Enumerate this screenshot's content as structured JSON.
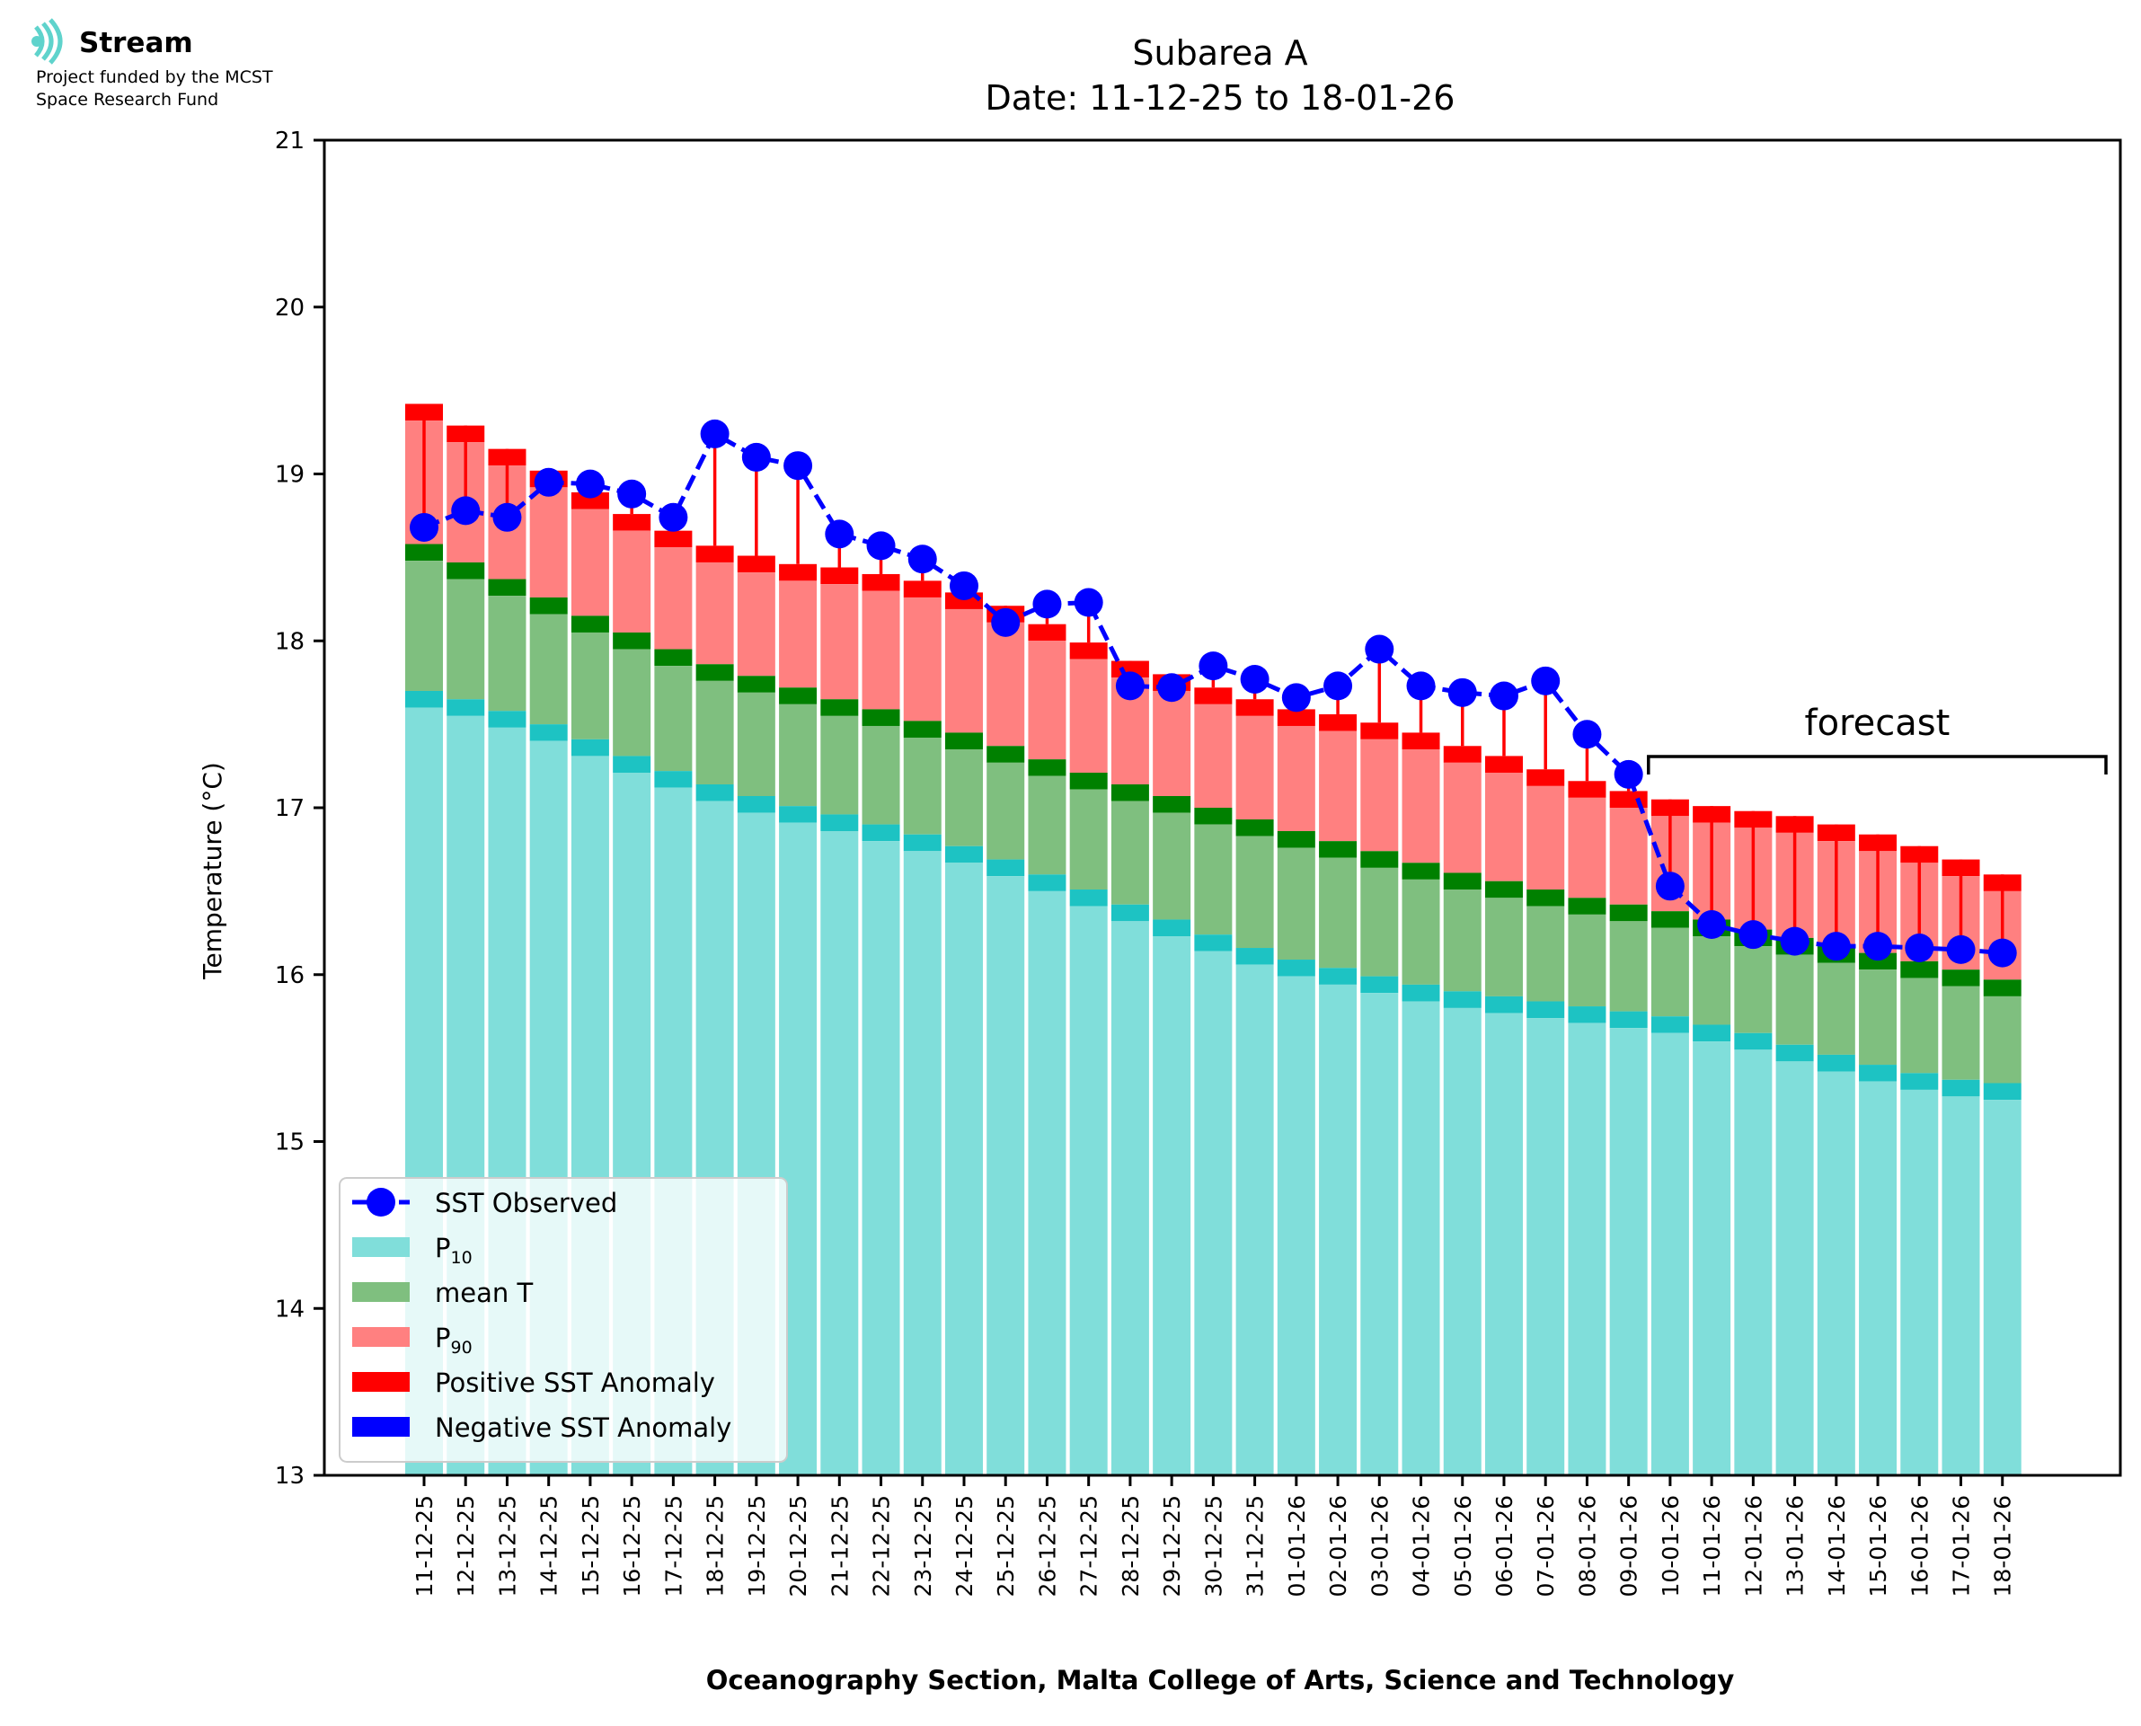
{
  "logo": {
    "name": "Stream",
    "line1": "Project funded by the MCST",
    "line2": "Space Research Fund"
  },
  "footer": "Oceanography Section, Malta College of Arts, Science and Technology",
  "annotation": {
    "forecast": "forecast"
  },
  "colors": {
    "p10": "#80deda",
    "p10_band": "#1dc3c3",
    "mean": "#7fbf7f",
    "mean_band": "#008000",
    "p90": "#ff8080",
    "p90_band": "#ff0000",
    "observed": "#0000ff",
    "neg_anomaly": "#0000ff"
  },
  "chart_data": {
    "type": "bar",
    "title": "Subarea A",
    "subtitle": "Date: 11-12-25 to 18-01-26",
    "xlabel": "Oceanography Section, Malta College of Arts, Science and Technology",
    "ylabel": "Temperature (°C)",
    "ylim": [
      13,
      21
    ],
    "yticks": [
      13,
      14,
      15,
      16,
      17,
      18,
      19,
      20,
      21
    ],
    "grid": false,
    "legend_position": "bottom-left",
    "categories": [
      "11-12-25",
      "12-12-25",
      "13-12-25",
      "14-12-25",
      "15-12-25",
      "16-12-25",
      "17-12-25",
      "18-12-25",
      "19-12-25",
      "20-12-25",
      "21-12-25",
      "22-12-25",
      "23-12-25",
      "24-12-25",
      "25-12-25",
      "26-12-25",
      "27-12-25",
      "28-12-25",
      "29-12-25",
      "30-12-25",
      "31-12-25",
      "01-01-26",
      "02-01-26",
      "03-01-26",
      "04-01-26",
      "05-01-26",
      "06-01-26",
      "07-01-26",
      "08-01-26",
      "09-01-26",
      "10-01-26",
      "11-01-26",
      "12-01-26",
      "13-01-26",
      "14-01-26",
      "15-01-26",
      "16-01-26",
      "17-01-26",
      "18-01-26"
    ],
    "legend": [
      {
        "label": "SST Observed",
        "sub": "",
        "kind": "line",
        "color": "#0000ff"
      },
      {
        "label": "P",
        "sub": "10",
        "kind": "patch",
        "color": "#80deda"
      },
      {
        "label": "mean T",
        "sub": "",
        "kind": "patch",
        "color": "#7fbf7f"
      },
      {
        "label": "P",
        "sub": "90",
        "kind": "patch",
        "color": "#ff8080"
      },
      {
        "label": "Positive SST Anomaly",
        "sub": "",
        "kind": "patch",
        "color": "#ff0000"
      },
      {
        "label": "Negative SST Anomaly",
        "sub": "",
        "kind": "patch",
        "color": "#0000ff"
      }
    ],
    "forecast_start_index": 30,
    "series": [
      {
        "name": "P10",
        "values": [
          17.7,
          17.65,
          17.58,
          17.5,
          17.41,
          17.31,
          17.22,
          17.14,
          17.07,
          17.01,
          16.96,
          16.9,
          16.84,
          16.77,
          16.69,
          16.6,
          16.51,
          16.42,
          16.33,
          16.24,
          16.16,
          16.09,
          16.04,
          15.99,
          15.94,
          15.9,
          15.87,
          15.84,
          15.81,
          15.78,
          15.75,
          15.7,
          15.65,
          15.58,
          15.52,
          15.46,
          15.41,
          15.37,
          15.35
        ]
      },
      {
        "name": "mean T",
        "values": [
          18.58,
          18.47,
          18.37,
          18.26,
          18.15,
          18.05,
          17.95,
          17.86,
          17.79,
          17.72,
          17.65,
          17.59,
          17.52,
          17.45,
          17.37,
          17.29,
          17.21,
          17.14,
          17.07,
          17.0,
          16.93,
          16.86,
          16.8,
          16.74,
          16.67,
          16.61,
          16.56,
          16.51,
          16.46,
          16.42,
          16.38,
          16.33,
          16.27,
          16.22,
          16.17,
          16.13,
          16.08,
          16.03,
          15.97
        ]
      },
      {
        "name": "P90",
        "values": [
          19.42,
          19.29,
          19.15,
          19.02,
          18.89,
          18.76,
          18.66,
          18.57,
          18.51,
          18.46,
          18.44,
          18.4,
          18.36,
          18.29,
          18.21,
          18.1,
          17.99,
          17.88,
          17.8,
          17.72,
          17.65,
          17.59,
          17.56,
          17.51,
          17.45,
          17.37,
          17.31,
          17.23,
          17.16,
          17.1,
          17.05,
          17.01,
          16.98,
          16.95,
          16.9,
          16.84,
          16.77,
          16.69,
          16.6
        ]
      },
      {
        "name": "SST Observed",
        "values": [
          18.68,
          18.78,
          18.74,
          18.95,
          18.94,
          18.88,
          18.74,
          19.24,
          19.1,
          19.05,
          18.64,
          18.57,
          18.49,
          18.33,
          18.11,
          18.22,
          18.23,
          17.73,
          17.72,
          17.85,
          17.77,
          17.66,
          17.73,
          17.95,
          17.73,
          17.69,
          17.67,
          17.76,
          17.44,
          17.2,
          16.53,
          16.3,
          16.24,
          16.2,
          16.17,
          16.17,
          16.16,
          16.15,
          16.13
        ]
      }
    ]
  }
}
